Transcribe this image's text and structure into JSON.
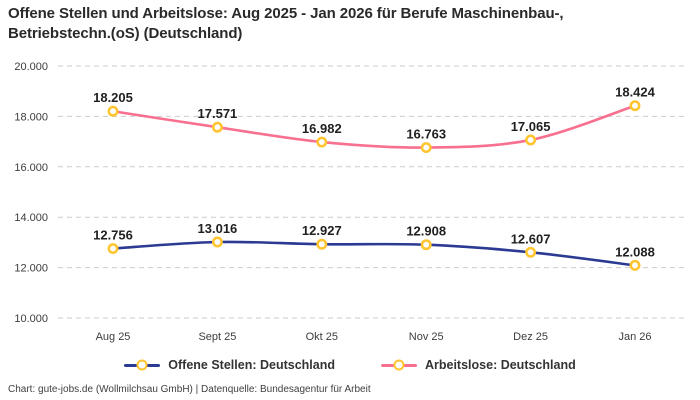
{
  "header": {
    "title_lines": [
      "Offene Stellen und Arbeitslose: Aug 2025 - Jan 2026 für Berufe Maschinenbau-,",
      "Betriebstechn.(oS) (Deutschland)"
    ]
  },
  "chart_data": {
    "type": "line",
    "title": "Offene Stellen und Arbeitslose: Aug 2025 - Jan 2026 für Berufe Maschinenbau-, Betriebstechn.(oS) (Deutschland)",
    "categories": [
      "Aug 25",
      "Sept 25",
      "Okt 25",
      "Nov 25",
      "Dez 25",
      "Jan 26"
    ],
    "series": [
      {
        "name": "Offene Stellen: Deutschland",
        "values": [
          12756,
          13016,
          12927,
          12908,
          12607,
          12088
        ],
        "color": "#2B3A92"
      },
      {
        "name": "Arbeitslose: Deutschland",
        "values": [
          18205,
          17571,
          16982,
          16763,
          17065,
          18424
        ],
        "color": "#F8708F"
      }
    ],
    "ylim": [
      10000,
      20000
    ],
    "yticks": [
      10000,
      12000,
      14000,
      16000,
      18000,
      20000
    ],
    "grid": "horizontal-dashed",
    "gridline_color": "#CBCBCB",
    "legend_position": "bottom",
    "data_labels": true,
    "marker": {
      "fill": "#FFFFFF",
      "stroke": "#FFC42E"
    }
  },
  "footer": {
    "text": "Chart: gute-jobs.de (Wollmilchsau GmbH) | Datenquelle: Bundesagentur für Arbeit"
  }
}
